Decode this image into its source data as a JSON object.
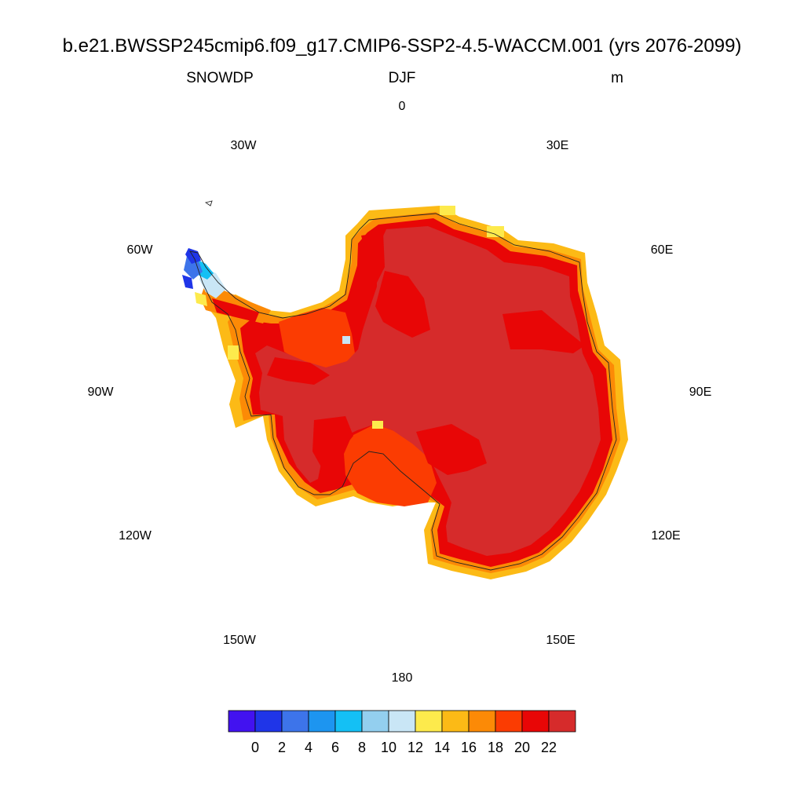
{
  "title": "b.e21.BWSSP245cmip6.f09_g17.CMIP6-SSP2-4.5-WACCM.001 (yrs 2076-2099)",
  "left_string": "SNOWDP",
  "center_string": "DJF",
  "right_string": "m",
  "longitude_labels": {
    "0": "0",
    "30E": "30E",
    "60E": "60E",
    "90E": "90E",
    "120E": "120E",
    "150E": "150E",
    "180": "180",
    "150W": "150W",
    "120W": "120W",
    "90W": "90W",
    "60W": "60W",
    "30W": "30W"
  },
  "projection": "south-polar-stereographic",
  "colorbar": {
    "colors": [
      "#4212f0",
      "#1f35e8",
      "#3d74ea",
      "#1d95f0",
      "#14c0f5",
      "#93cfef",
      "#c9e6f6",
      "#fdea4c",
      "#fcba16",
      "#fc8a06",
      "#fb3c02",
      "#e80606",
      "#d62b2b"
    ],
    "tick_labels": [
      "0",
      "2",
      "4",
      "6",
      "8",
      "10",
      "12",
      "14",
      "16",
      "18",
      "20",
      "22"
    ]
  },
  "palette": {
    "interior": "#d62b2b",
    "inner_ring": "#e80606",
    "embayment": "#fb3c02",
    "coast_orange": "#fc8a06",
    "coast_yellow": "#fcba16",
    "light_yellow": "#fdea4c",
    "peninsula_blue": "#1f35e8",
    "peninsula_midblue": "#3d74ea",
    "peninsula_cyan": "#14c0f5",
    "peninsula_light": "#c9e6f6"
  }
}
